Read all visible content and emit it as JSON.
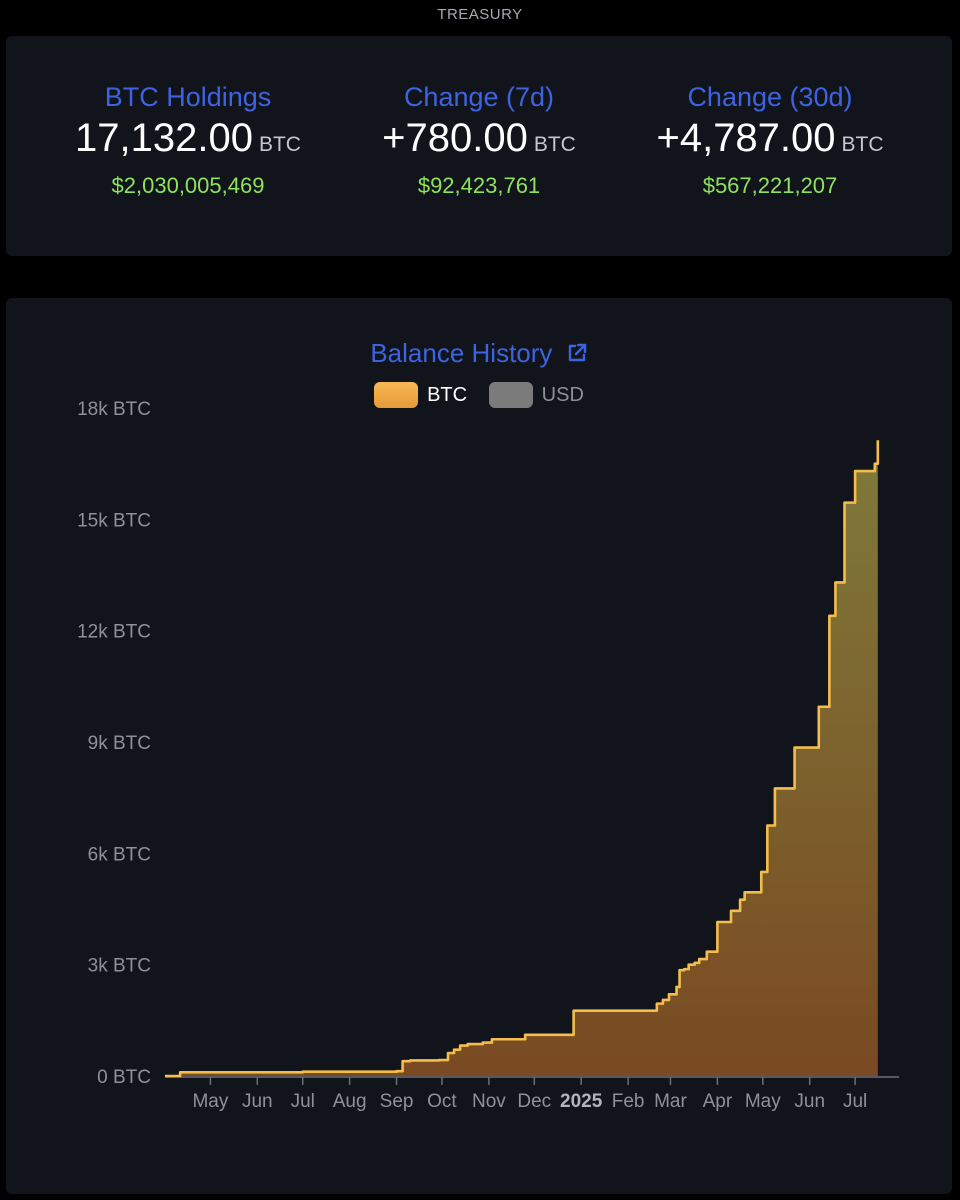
{
  "header": {
    "label": "TREASURY"
  },
  "stats": [
    {
      "title": "BTC Holdings",
      "value": "17,132.00",
      "unit": "BTC",
      "usd": "$2,030,005,469"
    },
    {
      "title": "Change (7d)",
      "value": "+780.00",
      "unit": "BTC",
      "usd": "$92,423,761"
    },
    {
      "title": "Change (30d)",
      "value": "+4,787.00",
      "unit": "BTC",
      "usd": "$567,221,207"
    }
  ],
  "colors": {
    "accent": "#3d63e0",
    "positive": "#8ee35c",
    "line": "#f5be4c",
    "fill_top": "#7f7a3a",
    "fill_bottom": "#7a4a22"
  },
  "chart_data": {
    "type": "area",
    "title": "Balance History",
    "title_icon": "external-link-icon",
    "legend": [
      {
        "name": "BTC",
        "color": "#f5b04a",
        "active": true
      },
      {
        "name": "USD",
        "color": "#7b7b7b",
        "active": false
      }
    ],
    "y_ticks": [
      {
        "value": 0,
        "label": "0 BTC"
      },
      {
        "value": 3000,
        "label": "3k BTC"
      },
      {
        "value": 6000,
        "label": "6k BTC"
      },
      {
        "value": 9000,
        "label": "9k BTC"
      },
      {
        "value": 12000,
        "label": "12k BTC"
      },
      {
        "value": 15000,
        "label": "15k BTC"
      },
      {
        "value": 18000,
        "label": "18k BTC"
      }
    ],
    "ylim": [
      0,
      18000
    ],
    "xlim": [
      "2024-04-01",
      "2025-07-30"
    ],
    "x_ticks": [
      {
        "date": "2024-05-01",
        "label": "May",
        "bold": false
      },
      {
        "date": "2024-06-01",
        "label": "Jun",
        "bold": false
      },
      {
        "date": "2024-07-01",
        "label": "Jul",
        "bold": false
      },
      {
        "date": "2024-08-01",
        "label": "Aug",
        "bold": false
      },
      {
        "date": "2024-09-01",
        "label": "Sep",
        "bold": false
      },
      {
        "date": "2024-10-01",
        "label": "Oct",
        "bold": false
      },
      {
        "date": "2024-11-01",
        "label": "Nov",
        "bold": false
      },
      {
        "date": "2024-12-01",
        "label": "Dec",
        "bold": false
      },
      {
        "date": "2025-01-01",
        "label": "2025",
        "bold": true
      },
      {
        "date": "2025-02-01",
        "label": "Feb",
        "bold": false
      },
      {
        "date": "2025-03-01",
        "label": "Mar",
        "bold": false
      },
      {
        "date": "2025-04-01",
        "label": "Apr",
        "bold": false
      },
      {
        "date": "2025-05-01",
        "label": "May",
        "bold": false
      },
      {
        "date": "2025-06-01",
        "label": "Jun",
        "bold": false
      },
      {
        "date": "2025-07-01",
        "label": "Jul",
        "bold": false
      }
    ],
    "series": [
      {
        "name": "BTC",
        "step": true,
        "points": [
          [
            "2024-04-01",
            0
          ],
          [
            "2024-04-11",
            100
          ],
          [
            "2024-07-01",
            115
          ],
          [
            "2024-09-01",
            130
          ],
          [
            "2024-09-05",
            400
          ],
          [
            "2024-09-10",
            420
          ],
          [
            "2024-09-29",
            430
          ],
          [
            "2024-10-05",
            620
          ],
          [
            "2024-10-09",
            710
          ],
          [
            "2024-10-13",
            820
          ],
          [
            "2024-10-18",
            860
          ],
          [
            "2024-10-28",
            900
          ],
          [
            "2024-11-03",
            990
          ],
          [
            "2024-11-25",
            1110
          ],
          [
            "2024-12-27",
            1760
          ],
          [
            "2025-02-20",
            1950
          ],
          [
            "2025-02-24",
            2050
          ],
          [
            "2025-02-28",
            2200
          ],
          [
            "2025-03-05",
            2400
          ],
          [
            "2025-03-07",
            2850
          ],
          [
            "2025-03-10",
            2880
          ],
          [
            "2025-03-13",
            3000
          ],
          [
            "2025-03-17",
            3050
          ],
          [
            "2025-03-20",
            3150
          ],
          [
            "2025-03-25",
            3350
          ],
          [
            "2025-04-01",
            4150
          ],
          [
            "2025-04-10",
            4450
          ],
          [
            "2025-04-16",
            4750
          ],
          [
            "2025-04-19",
            4950
          ],
          [
            "2025-04-30",
            5500
          ],
          [
            "2025-05-04",
            6750
          ],
          [
            "2025-05-09",
            7750
          ],
          [
            "2025-05-22",
            8850
          ],
          [
            "2025-06-07",
            9950
          ],
          [
            "2025-06-14",
            12400
          ],
          [
            "2025-06-18",
            13300
          ],
          [
            "2025-06-24",
            15450
          ],
          [
            "2025-07-01",
            16300
          ],
          [
            "2025-07-14",
            16500
          ],
          [
            "2025-07-16",
            17132
          ],
          [
            "2025-07-16",
            17132
          ]
        ]
      }
    ]
  }
}
